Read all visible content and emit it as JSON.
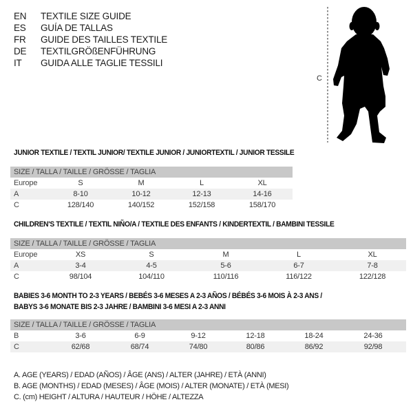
{
  "languages": [
    {
      "code": "EN",
      "text": "TEXTILE SIZE GUIDE"
    },
    {
      "code": "ES",
      "text": "GUÍA DE TALLAS"
    },
    {
      "code": "FR",
      "text": "GUIDE DES TAILLES TEXTILE"
    },
    {
      "code": "DE",
      "text": "TEXTILGRÖßENFÜHRUNG"
    },
    {
      "code": "IT",
      "text": "GUIDA ALLE TAGLIE TESSILI"
    }
  ],
  "figure": {
    "measure_label": "C",
    "icon": "child-silhouette"
  },
  "size_header": "SIZE / TALLA / TAILLE / GRÖSSE / TAGLIA",
  "sections": [
    {
      "title": "JUNIOR TEXTILE / TEXTIL JUNIOR/ TEXTILE JUNIOR / JUNIORTEXTIL / JUNIOR TESSILE",
      "rows": [
        {
          "label": "Europe",
          "values": [
            "S",
            "M",
            "L",
            "XL"
          ]
        },
        {
          "label": "A",
          "values": [
            "8-10",
            "10-12",
            "12-13",
            "14-16"
          ]
        },
        {
          "label": "C",
          "values": [
            "128/140",
            "140/152",
            "152/158",
            "158/170"
          ]
        }
      ]
    },
    {
      "title": "CHILDREN'S TEXTILE / TEXTIL NIÑO/A / TEXTILE DES ENFANTS / KINDERTEXTIL / BAMBINI TESSILE",
      "rows": [
        {
          "label": "Europe",
          "values": [
            "XS",
            "S",
            "M",
            "L",
            "XL"
          ]
        },
        {
          "label": "A",
          "values": [
            "3-4",
            "4-5",
            "5-6",
            "6-7",
            "7-8"
          ]
        },
        {
          "label": "C",
          "values": [
            "98/104",
            "104/110",
            "110/116",
            "116/122",
            "122/128"
          ]
        }
      ]
    },
    {
      "title": "BABIES 3-6 MONTH TO 2-3 YEARS / BEBÉS 3-6 MESES A 2-3 AÑOS / BÉBÉS 3-6 MOIS À 2-3 ANS /",
      "title2": "BABYS 3-6 MONATE BIS 2-3 JAHRE / BAMBINI 3-6 MESI A 2-3 ANNI",
      "rows": [
        {
          "label": "B",
          "values": [
            "3-6",
            "6-9",
            "9-12",
            "12-18",
            "18-24",
            "24-36"
          ]
        },
        {
          "label": "C",
          "values": [
            "62/68",
            "68/74",
            "74/80",
            "80/86",
            "86/92",
            "92/98"
          ]
        }
      ]
    }
  ],
  "legend": [
    "A. AGE (YEARS) / EDAD (AÑOS) / ÂGE (ANS) / ALTER (JAHRE) / ETÀ (ANNI)",
    "B. AGE (MONTHS) / EDAD (MESES) / ÂGE (MOIS) / ALTER (MONATE) / ETÀ (MESI)",
    "C. (cm) HEIGHT / ALTURA / HAUTEUR / HÖHE / ALTEZZA"
  ]
}
